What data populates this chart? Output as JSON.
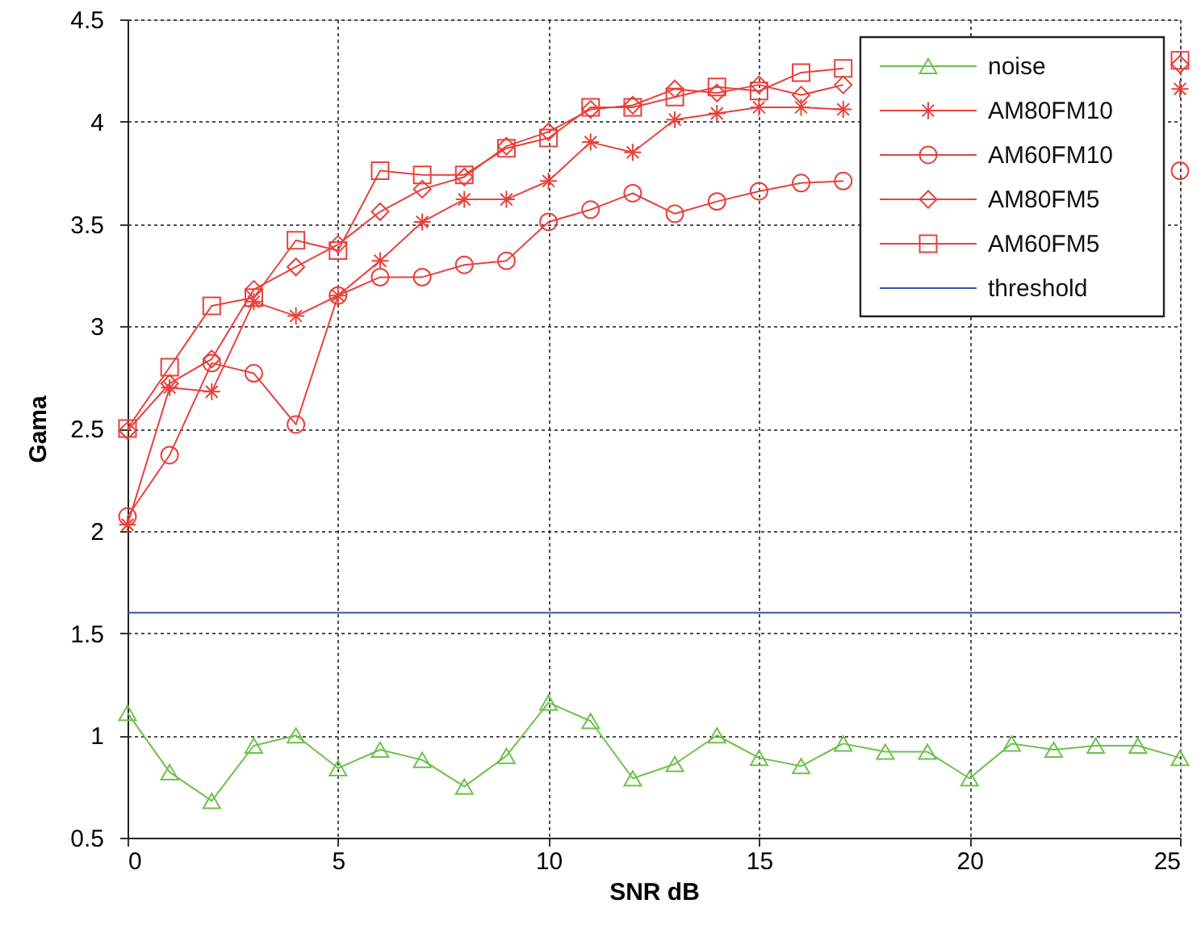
{
  "chart_data": {
    "type": "line",
    "xlabel": "SNR dB",
    "ylabel": "Gama",
    "x": [
      0,
      1,
      2,
      3,
      4,
      5,
      6,
      7,
      8,
      9,
      10,
      11,
      12,
      13,
      14,
      15,
      16,
      17,
      18,
      19,
      20,
      21,
      22,
      23,
      24,
      25
    ],
    "series": [
      {
        "name": "noise",
        "color": "#6cc24a",
        "marker": "triangle",
        "values": [
          1.11,
          0.82,
          0.68,
          0.95,
          1.0,
          0.84,
          0.93,
          0.88,
          0.75,
          0.9,
          1.16,
          1.07,
          0.79,
          0.86,
          1.0,
          0.89,
          0.85,
          0.96,
          0.92,
          0.92,
          0.79,
          0.96,
          0.93,
          0.95,
          0.95,
          0.89
        ]
      },
      {
        "name": "AM80FM10",
        "color": "#e8413c",
        "marker": "cross",
        "values": [
          2.03,
          2.7,
          2.68,
          3.12,
          3.05,
          3.15,
          3.32,
          3.51,
          3.62,
          3.62,
          3.71,
          3.9,
          3.85,
          4.01,
          4.04,
          4.07,
          4.07,
          4.06,
          null,
          null,
          null,
          null,
          null,
          null,
          null,
          4.16
        ]
      },
      {
        "name": "AM60FM10",
        "color": "#e8413c",
        "marker": "circle",
        "values": [
          2.07,
          2.37,
          2.82,
          2.77,
          2.52,
          3.15,
          3.24,
          3.24,
          3.3,
          3.32,
          3.51,
          3.57,
          3.65,
          3.55,
          3.61,
          3.66,
          3.7,
          3.71,
          null,
          null,
          null,
          null,
          null,
          null,
          null,
          3.76
        ]
      },
      {
        "name": "AM80FM5",
        "color": "#e8413c",
        "marker": "diamond",
        "values": [
          2.49,
          2.72,
          2.84,
          3.18,
          3.29,
          3.4,
          3.56,
          3.67,
          3.73,
          3.88,
          3.95,
          4.06,
          4.08,
          4.16,
          4.14,
          4.18,
          4.13,
          4.18,
          null,
          null,
          null,
          null,
          null,
          null,
          null,
          4.28
        ]
      },
      {
        "name": "AM60FM5",
        "color": "#e8413c",
        "marker": "square",
        "values": [
          2.5,
          2.8,
          3.1,
          3.14,
          3.42,
          3.37,
          3.76,
          3.74,
          3.74,
          3.87,
          3.92,
          4.07,
          4.07,
          4.12,
          4.17,
          4.15,
          4.24,
          4.26,
          null,
          null,
          null,
          null,
          null,
          null,
          null,
          4.3
        ]
      },
      {
        "name": "threshold",
        "color": "#3d4fa0",
        "marker": "none",
        "values": [
          1.6,
          1.6,
          1.6,
          1.6,
          1.6,
          1.6,
          1.6,
          1.6,
          1.6,
          1.6,
          1.6,
          1.6,
          1.6,
          1.6,
          1.6,
          1.6,
          1.6,
          1.6,
          1.6,
          1.6,
          1.6,
          1.6,
          1.6,
          1.6,
          1.6,
          1.6
        ]
      }
    ],
    "xlim": [
      0,
      25
    ],
    "xticks": [
      0,
      5,
      10,
      15,
      20,
      25
    ],
    "ylim": [
      0.5,
      4.5
    ],
    "yticks": [
      0.5,
      1,
      1.5,
      2,
      2.5,
      3,
      3.5,
      4,
      4.5
    ],
    "grid": true,
    "legend": "top right",
    "line_style": "solid"
  }
}
